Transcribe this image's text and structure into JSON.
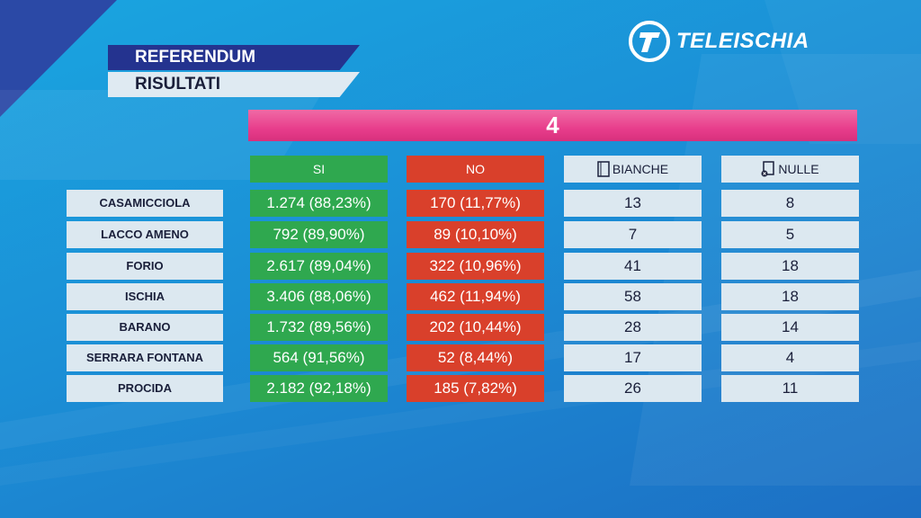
{
  "header": {
    "title1": "REFERENDUM",
    "title2": "RISULTATI"
  },
  "logo": {
    "text": "TELEISCHIA"
  },
  "banner": {
    "label": "4"
  },
  "columns": {
    "si": "SI",
    "no": "NO",
    "bianche": "BIANCHE",
    "nulle": "NULLE"
  },
  "rows": [
    {
      "name": "CASAMICCIOLA",
      "si": "1.274 (88,23%)",
      "no": "170 (11,77%)",
      "bianche": "13",
      "nulle": "8"
    },
    {
      "name": "LACCO AMENO",
      "si": "792 (89,90%)",
      "no": "89 (10,10%)",
      "bianche": "7",
      "nulle": "5"
    },
    {
      "name": "FORIO",
      "si": "2.617 (89,04%)",
      "no": "322 (10,96%)",
      "bianche": "41",
      "nulle": "18"
    },
    {
      "name": "ISCHIA",
      "si": "3.406 (88,06%)",
      "no": "462 (11,94%)",
      "bianche": "58",
      "nulle": "18"
    },
    {
      "name": "BARANO",
      "si": "1.732 (89,56%)",
      "no": "202 (10,44%)",
      "bianche": "28",
      "nulle": "14"
    },
    {
      "name": "SERRARA FONTANA",
      "si": "564 (91,56%)",
      "no": "52 (8,44%)",
      "bianche": "17",
      "nulle": "4"
    },
    {
      "name": "PROCIDA",
      "si": "2.182 (92,18%)",
      "no": "185 (7,82%)",
      "bianche": "26",
      "nulle": "11"
    }
  ],
  "colors": {
    "si": "#2fa84f",
    "no": "#d9402b",
    "banner": "#e83e8c",
    "light": "#dce8f0"
  }
}
